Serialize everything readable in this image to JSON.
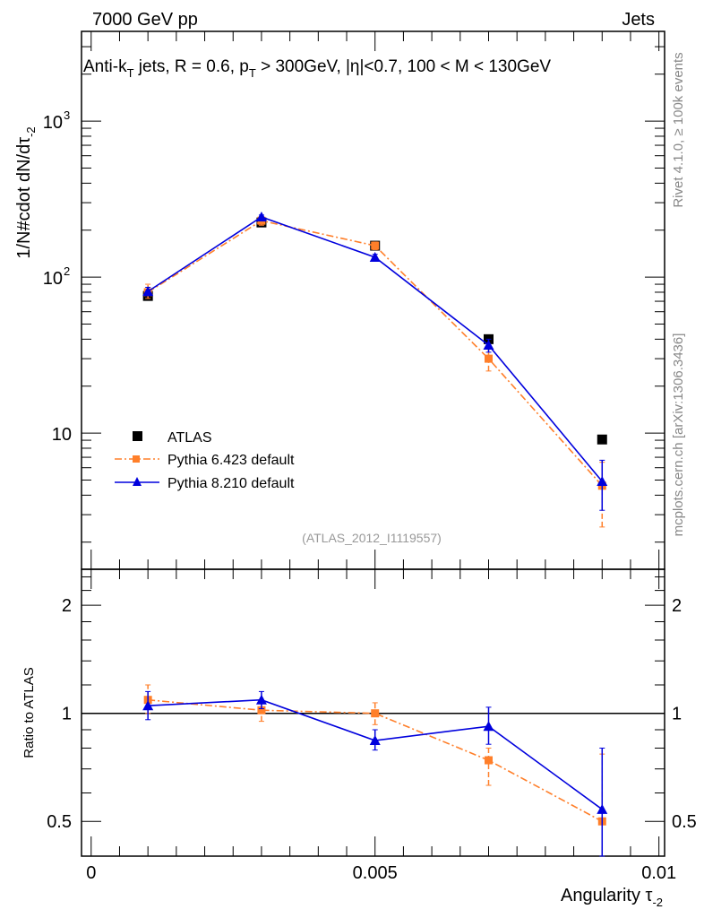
{
  "header": {
    "left": "7000 GeV pp",
    "right": "Jets"
  },
  "side_labels": {
    "rivet": "Rivet 4.1.0, ≥ 100k events",
    "mcplots": "mcplots.cern.ch [arXiv:1306.3436]"
  },
  "colors": {
    "atlas": "#000000",
    "pythia6": "#ff7f2a",
    "pythia8": "#0000dd"
  },
  "chart_data": [
    {
      "type": "line",
      "title": "Anti-k_T jets, R = 0.6, p_T > 300GeV, |η|<0.7, 100 < M < 130GeV",
      "title_parts": {
        "a": "Anti-k",
        "a_sub": "T",
        "b": " jets, R = 0.6, p",
        "b_sub": "T",
        "c": " > 300GeV, |η|<0.7, 100 < M < 130GeV"
      },
      "watermark": "(ATLAS_2012_I1119557)",
      "ylabel": "1/N#cdot dN/dτ",
      "ylabel_sub": "-2",
      "yscale": "log",
      "ylim": [
        1.34,
        3760
      ],
      "xlim": [
        -0.00017,
        0.0101
      ],
      "ytick_labels": {
        "10": "10",
        "100": "10",
        "1000": "10"
      },
      "ytick_exponents": {
        "100": "2",
        "1000": "3"
      },
      "legend_position": "middle-left",
      "x": [
        0.001,
        0.003,
        0.005,
        0.007,
        0.009
      ],
      "series": [
        {
          "name": "ATLAS",
          "marker": "square",
          "values": [
            75.7,
            224,
            159,
            40,
            9.1
          ],
          "errors": null
        },
        {
          "name": "Pythia 6.423 default",
          "marker": "square",
          "line": "dashdot",
          "values": [
            80,
            230,
            159,
            30,
            4.6
          ],
          "errors": [
            [
              73,
              90
            ],
            [
              215,
              240
            ],
            [
              150,
              168
            ],
            [
              25,
              35
            ],
            [
              2.5,
              6.5
            ]
          ]
        },
        {
          "name": "Pythia 8.210 default",
          "marker": "triangle",
          "line": "solid",
          "values": [
            80.9,
            243,
            134,
            36.6,
            4.9
          ],
          "errors": [
            [
              76,
              86
            ],
            [
              235,
              250
            ],
            [
              128,
              140
            ],
            [
              33,
              40
            ],
            [
              3.2,
              6.7
            ]
          ]
        }
      ]
    },
    {
      "type": "line",
      "ylabel": "Ratio to ATLAS",
      "xlabel": "Angularity τ",
      "xlabel_sub": "-2",
      "yscale": "log",
      "ylim": [
        0.4,
        2.52
      ],
      "xlim": [
        -0.00017,
        0.0101
      ],
      "yticks": [
        0.5,
        1,
        2
      ],
      "ytick_labels": [
        "0.5",
        "1",
        "2"
      ],
      "xticks": [
        0,
        0.005,
        0.01
      ],
      "xtick_labels": [
        "0",
        "0.005",
        "0.01"
      ],
      "x": [
        0.001,
        0.003,
        0.005,
        0.007,
        0.009
      ],
      "series": [
        {
          "name": "Pythia 6.423 default",
          "values": [
            1.09,
            1.02,
            1.0,
            0.74,
            0.5
          ],
          "errors": [
            [
              1.0,
              1.2
            ],
            [
              0.95,
              1.08
            ],
            [
              0.93,
              1.07
            ],
            [
              0.63,
              0.8
            ],
            [
              0.5,
              0.77
            ]
          ]
        },
        {
          "name": "Pythia 8.210 default",
          "values": [
            1.05,
            1.09,
            0.84,
            0.92,
            0.54
          ],
          "errors": [
            [
              0.96,
              1.15
            ],
            [
              1.03,
              1.15
            ],
            [
              0.79,
              0.9
            ],
            [
              0.82,
              1.04
            ],
            [
              0.4,
              0.8
            ]
          ]
        }
      ]
    }
  ]
}
